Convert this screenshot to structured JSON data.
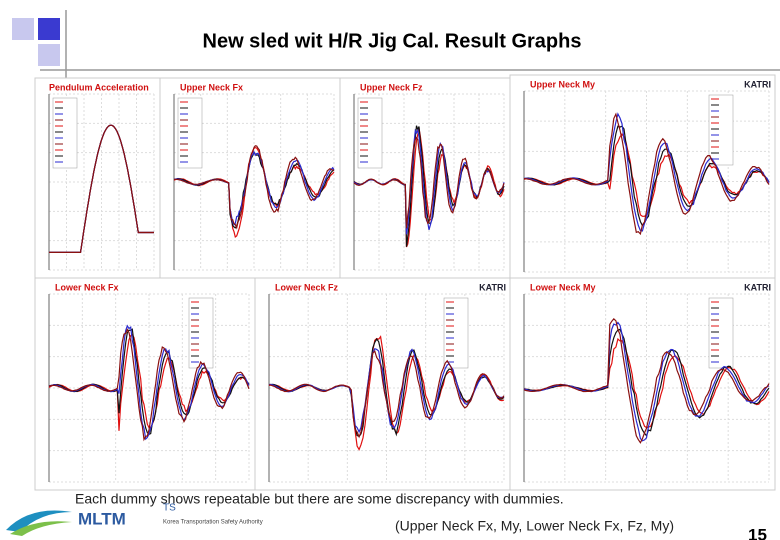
{
  "header": {
    "title": "New sled wit H/R Jig Cal. Result Graphs"
  },
  "panels": [
    {
      "title": "Pendulum Acceleration"
    },
    {
      "title": "Upper Neck Fx"
    },
    {
      "title": "Upper Neck Fz"
    },
    {
      "title": "Upper Neck My",
      "badge": "KATRI"
    },
    {
      "title": "Lower Neck Fx"
    },
    {
      "title": "Lower Neck Fz",
      "badge": "KATRI"
    },
    {
      "title": "Lower Neck My",
      "badge": "KATRI"
    }
  ],
  "caption": {
    "line1": "Each dummy shows repeatable but there are some discrepancy with dummies.",
    "line2": "(Upper Neck  Fx, My, Lower Neck Fx, Fz, My)"
  },
  "footer": {
    "logo": "MLTM",
    "logo2": "TS",
    "agency": "Korea Transportation Safety Authority",
    "page": "15"
  }
}
